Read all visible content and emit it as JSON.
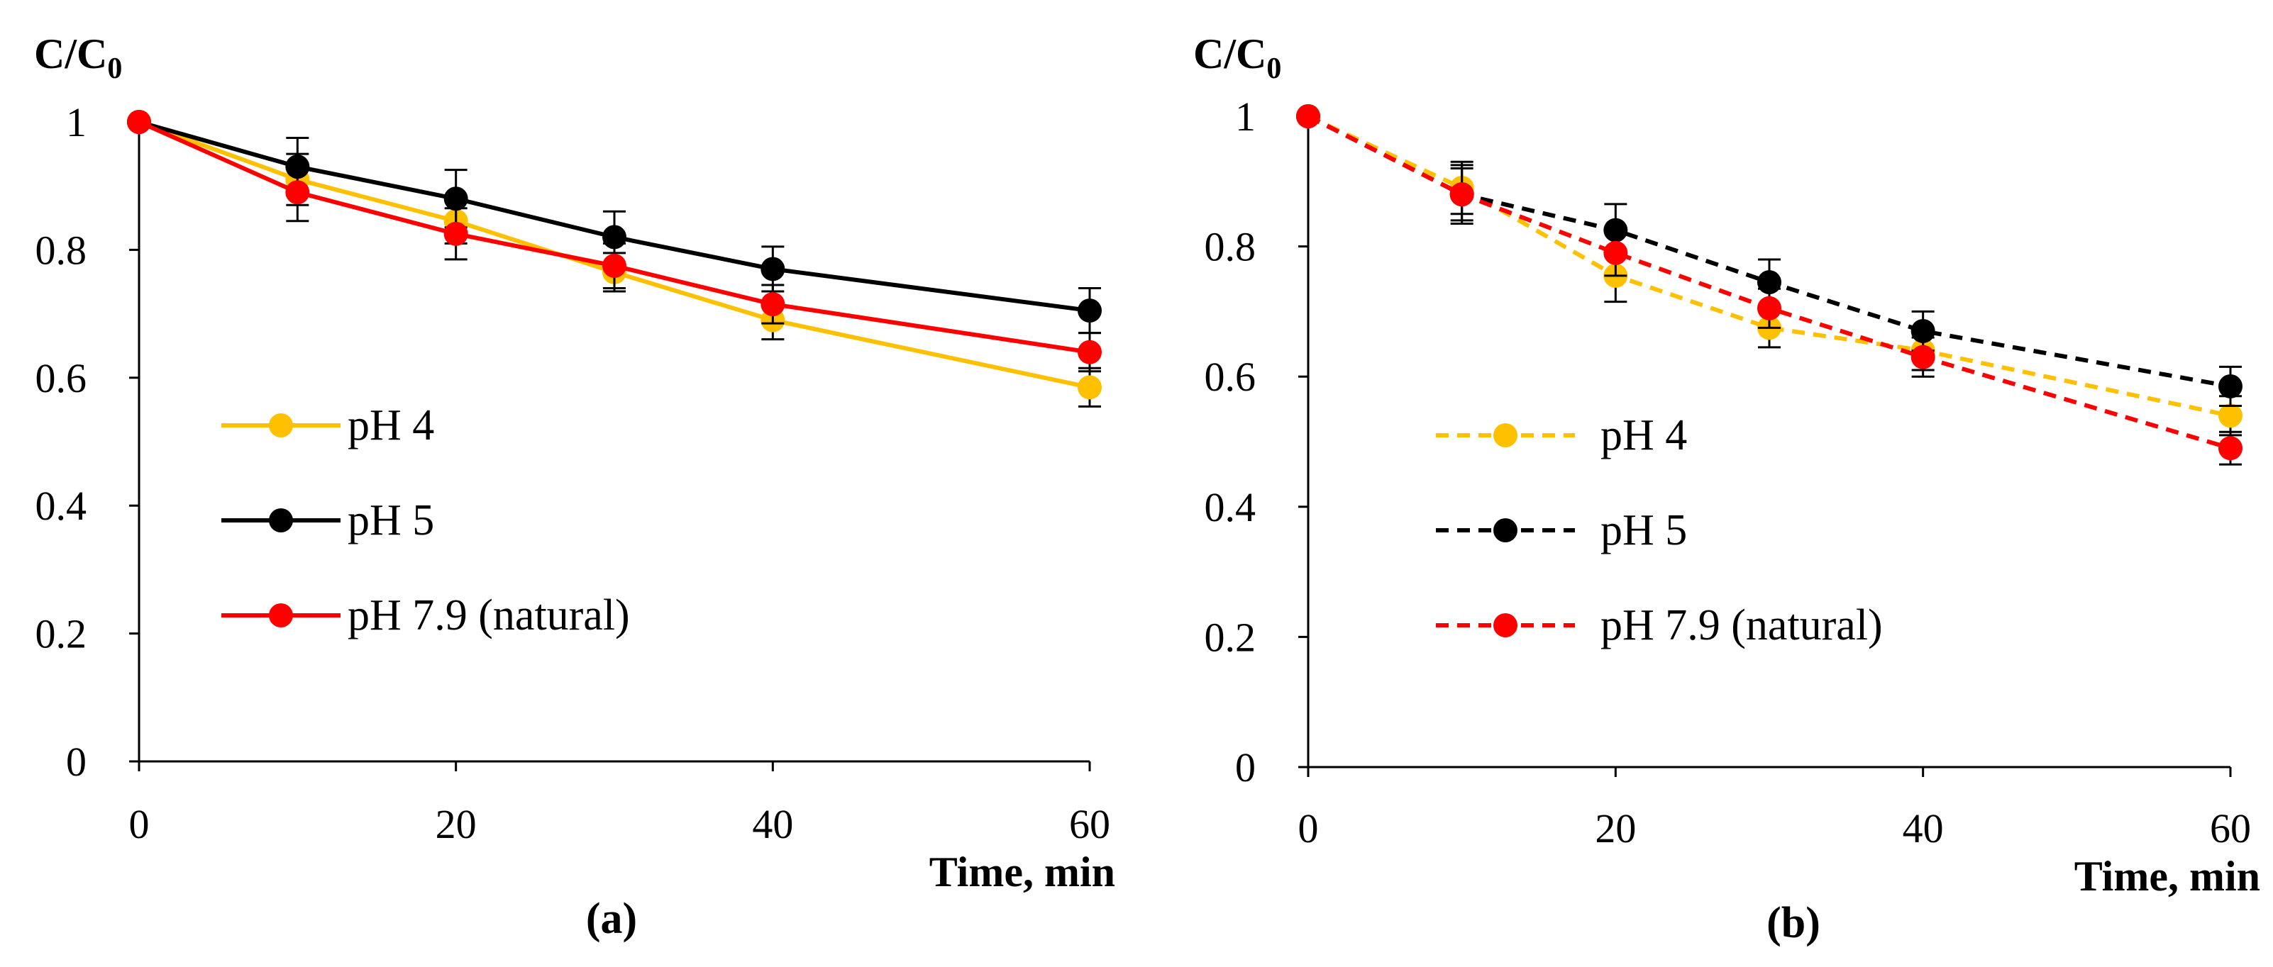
{
  "chart_data": [
    {
      "panel": "a",
      "panel_label": "(a)",
      "type": "line",
      "line_style": "solid",
      "xlabel": "Time, min",
      "ylabel": "C/C",
      "ylabel_sub": "0",
      "xlim": [
        0,
        60
      ],
      "ylim": [
        0,
        1
      ],
      "xticks": [
        "0",
        "20",
        "40",
        "60"
      ],
      "yticks": [
        "0",
        "0.2",
        "0.4",
        "0.6",
        "0.8",
        "1"
      ],
      "x": [
        0,
        10,
        20,
        30,
        40,
        60
      ],
      "series": [
        {
          "name": "pH 4",
          "color": "#FFC000",
          "values": [
            1.0,
            0.91,
            0.845,
            0.765,
            0.69,
            0.585
          ],
          "errors": [
            0,
            0.04,
            0.035,
            0.03,
            0.03,
            0.03
          ]
        },
        {
          "name": "pH 5",
          "color": "#000000",
          "values": [
            1.0,
            0.93,
            0.88,
            0.82,
            0.77,
            0.705
          ],
          "errors": [
            0,
            0.045,
            0.045,
            0.04,
            0.035,
            0.035
          ]
        },
        {
          "name": "pH 7.9 (natural)",
          "color": "#FF0000",
          "values": [
            1.0,
            0.89,
            0.825,
            0.775,
            0.715,
            0.64
          ],
          "errors": [
            0,
            0.045,
            0.04,
            0.035,
            0.03,
            0.03
          ]
        }
      ]
    },
    {
      "panel": "b",
      "panel_label": "(b)",
      "type": "line",
      "line_style": "dashed",
      "xlabel": "Time, min",
      "ylabel": "C/C",
      "ylabel_sub": "0",
      "xlim": [
        0,
        60
      ],
      "ylim": [
        0,
        1
      ],
      "xticks": [
        "0",
        "20",
        "40",
        "60"
      ],
      "yticks": [
        "0",
        "0.2",
        "0.4",
        "0.6",
        "0.8",
        "1"
      ],
      "x": [
        0,
        10,
        20,
        30,
        40,
        60
      ],
      "series": [
        {
          "name": "pH 4",
          "color": "#FFC000",
          "values": [
            1.0,
            0.89,
            0.755,
            0.675,
            0.64,
            0.54
          ],
          "errors": [
            0,
            0.04,
            0.04,
            0.03,
            0.03,
            0.03
          ]
        },
        {
          "name": "pH 5",
          "color": "#000000",
          "values": [
            1.0,
            0.88,
            0.825,
            0.745,
            0.67,
            0.585
          ],
          "errors": [
            0,
            0.045,
            0.04,
            0.035,
            0.03,
            0.03
          ]
        },
        {
          "name": "pH 7.9 (natural)",
          "color": "#FF0000",
          "values": [
            1.0,
            0.88,
            0.79,
            0.705,
            0.63,
            0.49
          ],
          "errors": [
            0,
            0.04,
            0.035,
            0.03,
            0.03,
            0.025
          ]
        }
      ]
    }
  ]
}
